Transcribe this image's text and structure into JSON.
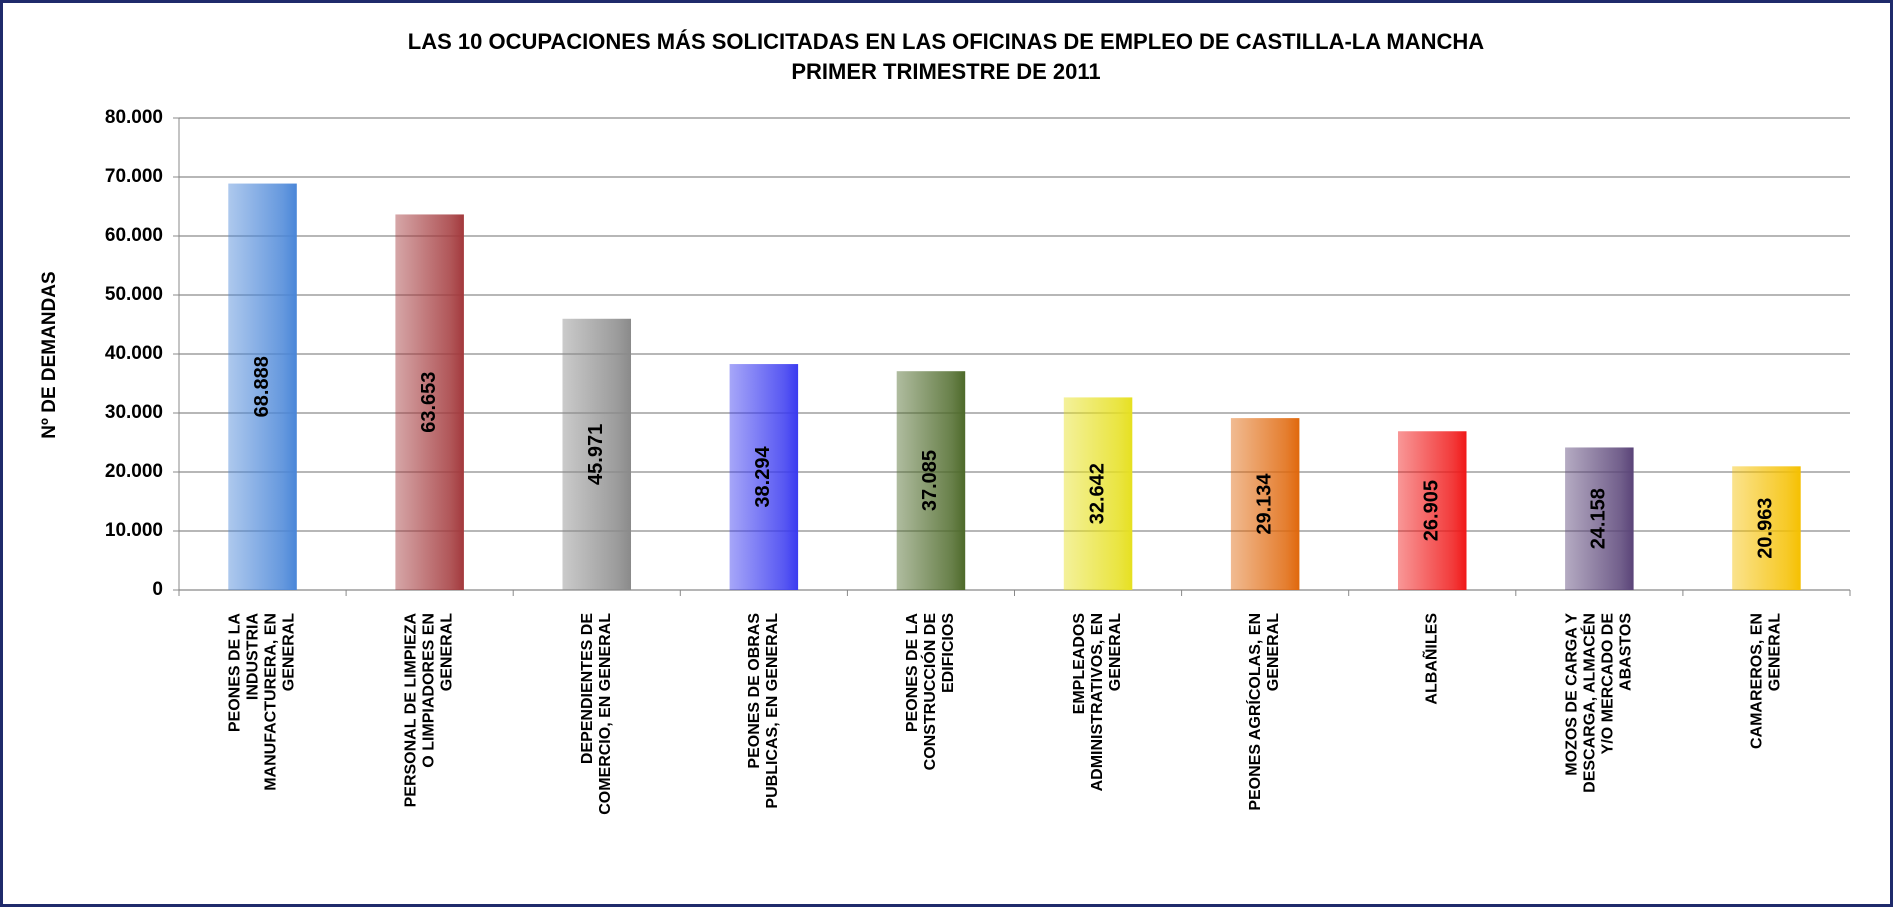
{
  "chart_data": {
    "type": "bar",
    "title": "LAS 10 OCUPACIONES MÁS SOLICITADAS EN LAS OFICINAS DE EMPLEO DE CASTILLA-LA MANCHA",
    "subtitle": "PRIMER TRIMESTRE DE 2011",
    "y_label": "Nº DE DEMANDAS",
    "categories": [
      "PEONES DE LA INDUSTRIA MANUFACTURERA, EN GENERAL",
      "PERSONAL DE LIMPIEZA O LIMPIADORES EN GENERAL",
      "DEPENDIENTES DE COMERCIO, EN GENERAL",
      "PEONES DE OBRAS PUBLICAS, EN GENERAL",
      "PEONES DE LA CONSTRUCCIÓN DE EDIFICIOS",
      "EMPLEADOS ADMINISTRATIVOS, EN GENERAL",
      "PEONES AGRÍCOLAS, EN GENERAL",
      "ALBAÑILES",
      "MOZOS DE CARGA Y DESCARGA, ALMACÉN Y/O MERCADO DE ABASTOS",
      "CAMAREROS, EN GENERAL"
    ],
    "values": [
      68888,
      63653,
      45971,
      38294,
      37085,
      32642,
      29134,
      26905,
      24158,
      20963
    ],
    "value_labels": [
      "68.888",
      "63.653",
      "45.971",
      "38.294",
      "37.085",
      "32.642",
      "29.134",
      "26.905",
      "24.158",
      "20.963"
    ],
    "colors": [
      "#4a86d8",
      "#a3393c",
      "#8a8a8a",
      "#3a3af0",
      "#4e6a2a",
      "#e6e020",
      "#e0680c",
      "#f01818",
      "#5a4478",
      "#f5c000"
    ],
    "ylim": [
      0,
      80000
    ],
    "yticks": [
      0,
      {
        "value": 10000,
        "label": "10.000"
      },
      {
        "value": 20000,
        "label": "20.000"
      },
      {
        "value": 30000,
        "label": "30.000"
      },
      {
        "value": 40000,
        "label": "40.000"
      },
      {
        "value": 50000,
        "label": "50.000"
      },
      {
        "value": 60000,
        "label": "60.000"
      },
      {
        "value": 70000,
        "label": "70.000"
      },
      {
        "value": 80000,
        "label": "80.000"
      }
    ],
    "grid": true
  }
}
